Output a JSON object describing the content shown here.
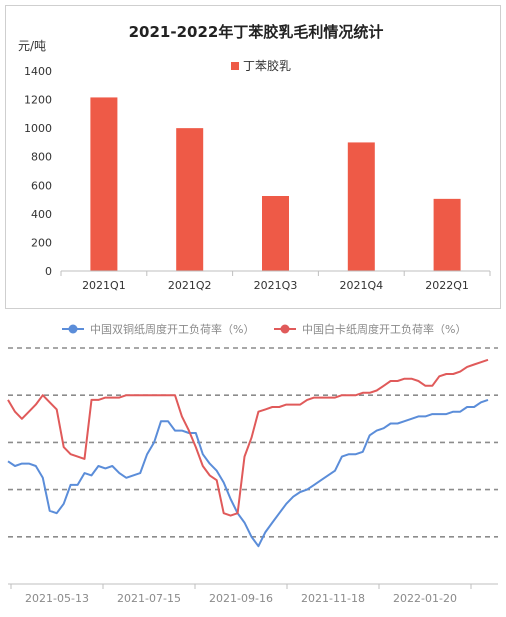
{
  "chart_data": [
    {
      "type": "bar",
      "title": "2021-2022年丁苯胶乳毛利情况统计",
      "ylabel": "元/吨",
      "xlabel": "",
      "categories": [
        "2021Q1",
        "2021Q2",
        "2021Q3",
        "2021Q4",
        "2022Q1"
      ],
      "series": [
        {
          "name": "丁苯胶乳",
          "values": [
            1215,
            1000,
            525,
            900,
            505
          ]
        }
      ],
      "ylim": [
        0,
        1400
      ],
      "yticks": [
        0,
        200,
        400,
        600,
        800,
        1000,
        1200,
        1400
      ],
      "legend": "top-center",
      "grid": false,
      "colors": {
        "bar": "#ee5a47"
      }
    },
    {
      "type": "line",
      "title": "",
      "xlabel": "",
      "ylabel": "",
      "x_tick_labels": [
        "2021-05-13",
        "2021-07-15",
        "2021-09-16",
        "2021-11-18",
        "2022-01-20"
      ],
      "ylim": [
        0,
        100
      ],
      "grid": true,
      "legend": "top-center",
      "series": [
        {
          "name": "中国双铜纸周度开工负荷率（%）",
          "color": "#5b8dd9",
          "values": [
            52,
            50,
            51,
            51,
            50,
            45,
            31,
            30,
            34,
            42,
            42,
            47,
            46,
            50,
            49,
            50,
            47,
            45,
            46,
            47,
            55,
            60,
            69,
            69,
            65,
            65,
            64,
            64,
            55,
            51,
            48,
            43,
            36,
            30,
            26,
            20,
            16,
            22,
            26,
            30,
            34,
            37,
            39,
            40,
            42,
            44,
            46,
            48,
            54,
            55,
            55,
            56,
            63,
            65,
            66,
            68,
            68,
            69,
            70,
            71,
            71,
            72,
            72,
            72,
            73,
            73,
            75,
            75,
            77,
            78
          ]
        },
        {
          "name": "中国白卡纸周度开工负荷率（%）",
          "color": "#e05a5a",
          "values": [
            78,
            73,
            70,
            73,
            76,
            80,
            77,
            74,
            58,
            55,
            54,
            53,
            78,
            78,
            79,
            79,
            79,
            80,
            80,
            80,
            80,
            80,
            80,
            80,
            80,
            71,
            65,
            58,
            50,
            46,
            44,
            30,
            29,
            30,
            54,
            62,
            73,
            74,
            75,
            75,
            76,
            76,
            76,
            78,
            79,
            79,
            79,
            79,
            80,
            80,
            80,
            81,
            81,
            82,
            84,
            86,
            86,
            87,
            87,
            86,
            84,
            84,
            88,
            89,
            89,
            90,
            92,
            93,
            94,
            95
          ]
        }
      ]
    }
  ]
}
